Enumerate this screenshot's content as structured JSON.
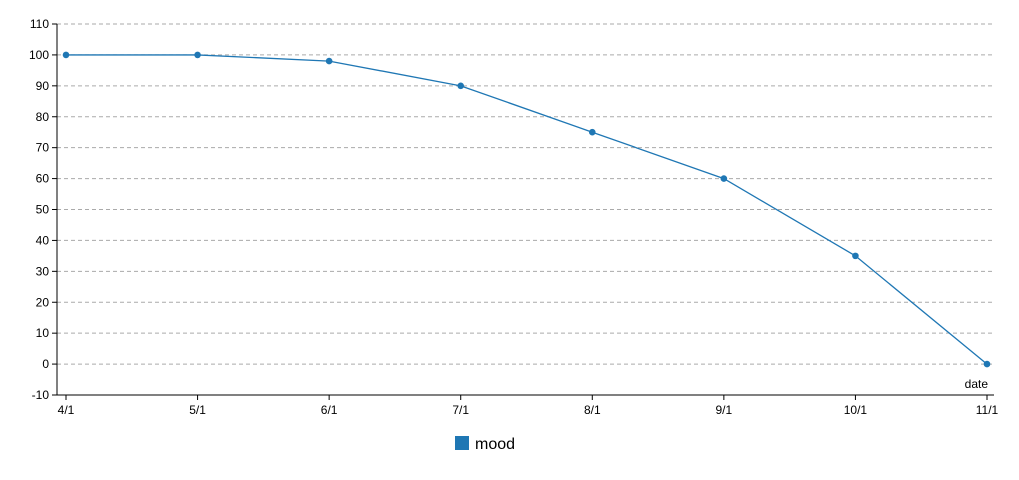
{
  "chart_data": {
    "type": "line",
    "title": "",
    "xlabel": "date",
    "ylabel": "",
    "x": [
      "4/1",
      "5/1",
      "6/1",
      "7/1",
      "8/1",
      "9/1",
      "10/1",
      "11/1"
    ],
    "series": [
      {
        "name": "mood",
        "values": [
          100,
          100,
          98,
          90,
          75,
          60,
          35,
          0
        ],
        "color": "#1f77b4"
      }
    ],
    "ylim": [
      -10,
      110
    ],
    "yticks": [
      -10,
      0,
      10,
      20,
      30,
      40,
      50,
      60,
      70,
      80,
      90,
      100,
      110
    ],
    "grid": "horizontal-dashed",
    "legend_position": "bottom-center"
  },
  "colors": {
    "series": "#1f77b4",
    "grid": "#aaaaaa",
    "axis": "#000000"
  }
}
